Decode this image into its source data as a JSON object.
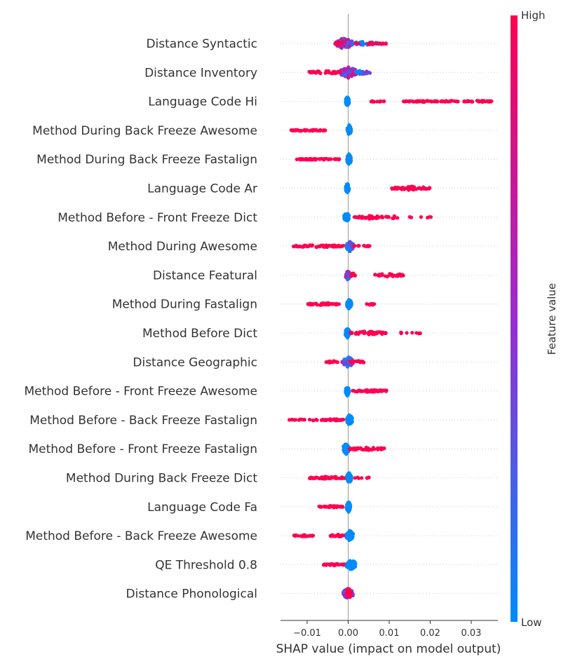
{
  "chart_data": {
    "type": "scatter",
    "subtype": "shap-beeswarm",
    "xlabel": "SHAP value (impact on model output)",
    "xlim": [
      -0.0165,
      0.0365
    ],
    "xticks": [
      {
        "value": -0.01,
        "label": "−0.01"
      },
      {
        "value": 0.0,
        "label": "0.00"
      },
      {
        "value": 0.01,
        "label": "0.01"
      },
      {
        "value": 0.02,
        "label": "0.02"
      },
      {
        "value": 0.03,
        "label": "0.03"
      }
    ],
    "colorbar": {
      "label": "Feature value",
      "high": "High",
      "low": "Low",
      "low_color": "#008bfb",
      "high_color": "#ff0051"
    },
    "features": [
      {
        "name": "Distance Syntactic",
        "clusters": [
          {
            "from": -0.003,
            "to": 0.001,
            "color": 0.5,
            "n": 90,
            "spread": 0.9
          },
          {
            "from": 0.0,
            "to": 0.0075,
            "color": 0.1,
            "n": 45,
            "spread": 0.3
          },
          {
            "from": 0.0015,
            "to": 0.0095,
            "color": 1.0,
            "n": 20,
            "spread": 0.2
          },
          {
            "from": -0.0032,
            "to": -0.0015,
            "color": 1.0,
            "n": 10,
            "spread": 0.3
          }
        ]
      },
      {
        "name": "Distance Inventory",
        "clusters": [
          {
            "from": -0.0018,
            "to": 0.002,
            "color": 0.5,
            "n": 90,
            "spread": 0.9
          },
          {
            "from": -0.0095,
            "to": -0.0015,
            "color": 1.0,
            "n": 35,
            "spread": 0.25
          },
          {
            "from": 0.001,
            "to": 0.0055,
            "color": 0.3,
            "n": 25,
            "spread": 0.3
          }
        ]
      },
      {
        "name": "Language Code Hi",
        "clusters": [
          {
            "from": -0.0006,
            "to": 0.0002,
            "color": 0.0,
            "n": 70,
            "spread": 0.8
          },
          {
            "from": 0.0055,
            "to": 0.009,
            "color": 1.0,
            "n": 12,
            "spread": 0.12
          },
          {
            "from": 0.0135,
            "to": 0.022,
            "color": 1.0,
            "n": 45,
            "spread": 0.12
          },
          {
            "from": 0.0225,
            "to": 0.027,
            "color": 1.0,
            "n": 20,
            "spread": 0.12
          },
          {
            "from": 0.028,
            "to": 0.0355,
            "color": 1.0,
            "n": 40,
            "spread": 0.12
          }
        ]
      },
      {
        "name": "Method During Back Freeze Awesome",
        "clusters": [
          {
            "from": -0.014,
            "to": -0.0055,
            "color": 1.0,
            "n": 50,
            "spread": 0.12
          },
          {
            "from": -0.0002,
            "to": 0.0007,
            "color": 0.0,
            "n": 60,
            "spread": 0.85
          }
        ]
      },
      {
        "name": "Method During Back Freeze Fastalign",
        "clusters": [
          {
            "from": -0.013,
            "to": -0.002,
            "color": 1.0,
            "n": 55,
            "spread": 0.12
          },
          {
            "from": -0.0003,
            "to": 0.0007,
            "color": 0.0,
            "n": 60,
            "spread": 0.85
          }
        ]
      },
      {
        "name": "Language Code Ar",
        "clusters": [
          {
            "from": -0.0006,
            "to": 0.0002,
            "color": 0.0,
            "n": 60,
            "spread": 0.8
          },
          {
            "from": 0.0105,
            "to": 0.02,
            "color": 1.0,
            "n": 50,
            "spread": 0.3
          }
        ]
      },
      {
        "name": "Method Before - Front Freeze Dict",
        "clusters": [
          {
            "from": -0.001,
            "to": 0.0002,
            "color": 0.0,
            "n": 60,
            "spread": 0.8
          },
          {
            "from": 0.0015,
            "to": 0.0085,
            "color": 1.0,
            "n": 40,
            "spread": 0.25
          },
          {
            "from": 0.009,
            "to": 0.013,
            "color": 1.0,
            "n": 10,
            "spread": 0.2
          },
          {
            "from": 0.015,
            "to": 0.021,
            "color": 1.0,
            "n": 6,
            "spread": 0.1
          }
        ]
      },
      {
        "name": "Method During Awesome",
        "clusters": [
          {
            "from": -0.0135,
            "to": -0.001,
            "color": 1.0,
            "n": 60,
            "spread": 0.2
          },
          {
            "from": -0.0004,
            "to": 0.0012,
            "color": 0.05,
            "n": 70,
            "spread": 0.85
          },
          {
            "from": 0.001,
            "to": 0.0055,
            "color": 1.0,
            "n": 12,
            "spread": 0.12
          }
        ]
      },
      {
        "name": "Distance Featural",
        "clusters": [
          {
            "from": -0.0006,
            "to": 0.0004,
            "color": 0.4,
            "n": 55,
            "spread": 0.8
          },
          {
            "from": 0.0005,
            "to": 0.0018,
            "color": 1.0,
            "n": 12,
            "spread": 0.3
          },
          {
            "from": 0.0065,
            "to": 0.0135,
            "color": 1.0,
            "n": 35,
            "spread": 0.25
          }
        ]
      },
      {
        "name": "Method During Fastalign",
        "clusters": [
          {
            "from": -0.0098,
            "to": -0.002,
            "color": 1.0,
            "n": 45,
            "spread": 0.2
          },
          {
            "from": -0.0003,
            "to": 0.0008,
            "color": 0.0,
            "n": 60,
            "spread": 0.85
          },
          {
            "from": 0.0045,
            "to": 0.0065,
            "color": 1.0,
            "n": 8,
            "spread": 0.2
          }
        ]
      },
      {
        "name": "Method Before Dict",
        "clusters": [
          {
            "from": -0.0007,
            "to": 0.0003,
            "color": 0.0,
            "n": 60,
            "spread": 0.8
          },
          {
            "from": 0.0005,
            "to": 0.0095,
            "color": 1.0,
            "n": 50,
            "spread": 0.3
          },
          {
            "from": 0.011,
            "to": 0.0185,
            "color": 1.0,
            "n": 10,
            "spread": 0.15
          }
        ]
      },
      {
        "name": "Distance Geographic",
        "clusters": [
          {
            "from": -0.0055,
            "to": -0.0005,
            "color": 1.0,
            "n": 25,
            "spread": 0.2
          },
          {
            "from": -0.0012,
            "to": 0.0012,
            "color": 0.3,
            "n": 60,
            "spread": 0.85
          },
          {
            "from": 0.0005,
            "to": 0.0038,
            "color": 1.0,
            "n": 18,
            "spread": 0.25
          }
        ]
      },
      {
        "name": "Method Before - Front Freeze Awesome",
        "clusters": [
          {
            "from": -0.0006,
            "to": 0.0002,
            "color": 0.0,
            "n": 55,
            "spread": 0.8
          },
          {
            "from": 0.0005,
            "to": 0.0095,
            "color": 1.0,
            "n": 45,
            "spread": 0.2
          }
        ]
      },
      {
        "name": "Method Before - Back Freeze Fastalign",
        "clusters": [
          {
            "from": -0.0145,
            "to": -0.0105,
            "color": 1.0,
            "n": 12,
            "spread": 0.12
          },
          {
            "from": -0.0095,
            "to": -0.0075,
            "color": 1.0,
            "n": 5,
            "spread": 0.12
          },
          {
            "from": -0.0065,
            "to": -0.0008,
            "color": 1.0,
            "n": 35,
            "spread": 0.15
          },
          {
            "from": -0.0003,
            "to": 0.001,
            "color": 0.0,
            "n": 60,
            "spread": 0.85
          }
        ]
      },
      {
        "name": "Method Before - Front Freeze Fastalign",
        "clusters": [
          {
            "from": -0.0012,
            "to": 0.0002,
            "color": 0.0,
            "n": 60,
            "spread": 0.85
          },
          {
            "from": 0.0002,
            "to": 0.0088,
            "color": 1.0,
            "n": 45,
            "spread": 0.25
          }
        ]
      },
      {
        "name": "Method During Back Freeze Dict",
        "clusters": [
          {
            "from": -0.0098,
            "to": -0.0005,
            "color": 1.0,
            "n": 50,
            "spread": 0.2
          },
          {
            "from": -0.0003,
            "to": 0.0008,
            "color": 0.0,
            "n": 60,
            "spread": 0.85
          },
          {
            "from": 0.0015,
            "to": 0.0055,
            "color": 1.0,
            "n": 8,
            "spread": 0.15
          }
        ]
      },
      {
        "name": "Language Code Fa",
        "clusters": [
          {
            "from": -0.0072,
            "to": -0.0012,
            "color": 1.0,
            "n": 40,
            "spread": 0.15
          },
          {
            "from": -0.0004,
            "to": 0.0006,
            "color": 0.0,
            "n": 55,
            "spread": 0.85
          }
        ]
      },
      {
        "name": "Method Before - Back Freeze Awesome",
        "clusters": [
          {
            "from": -0.0135,
            "to": -0.0085,
            "color": 1.0,
            "n": 18,
            "spread": 0.15
          },
          {
            "from": -0.0045,
            "to": -0.0005,
            "color": 1.0,
            "n": 20,
            "spread": 0.2
          },
          {
            "from": -0.0004,
            "to": 0.0012,
            "color": 0.0,
            "n": 60,
            "spread": 0.85
          }
        ]
      },
      {
        "name": "QE Threshold 0.8",
        "clusters": [
          {
            "from": -0.006,
            "to": -0.0005,
            "color": 1.0,
            "n": 35,
            "spread": 0.15
          },
          {
            "from": -0.0004,
            "to": 0.0018,
            "color": 0.0,
            "n": 60,
            "spread": 0.85
          }
        ]
      },
      {
        "name": "Distance Phonological",
        "clusters": [
          {
            "from": -0.0012,
            "to": 0.0012,
            "color": 0.6,
            "n": 60,
            "spread": 0.9
          },
          {
            "from": -0.0004,
            "to": 0.0006,
            "color": 1.0,
            "n": 20,
            "spread": 0.9
          }
        ]
      }
    ]
  }
}
